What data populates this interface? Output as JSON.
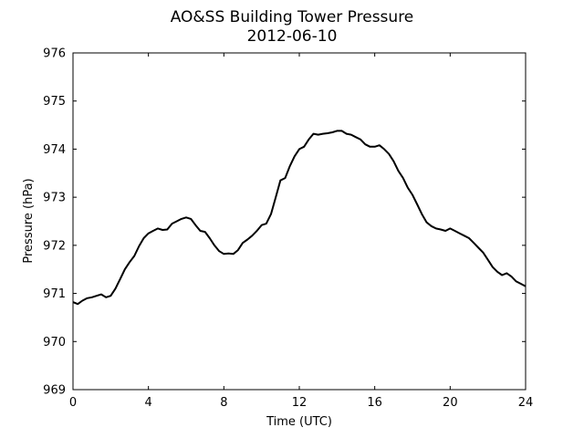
{
  "chart_data": {
    "type": "line",
    "title": "AO&SS Building Tower Pressure",
    "subtitle": "2012-06-10",
    "xlabel": "Time (UTC)",
    "ylabel": "Pressure (hPa)",
    "xlim": [
      0,
      24
    ],
    "ylim": [
      969,
      976
    ],
    "xticks": [
      0,
      4,
      8,
      12,
      16,
      20,
      24
    ],
    "yticks": [
      969,
      970,
      971,
      972,
      973,
      974,
      975,
      976
    ],
    "grid": false,
    "legend": "none",
    "series": [
      {
        "color": "#000000",
        "x": [
          0,
          0.25,
          0.5,
          0.75,
          1.0,
          1.25,
          1.5,
          1.75,
          2.0,
          2.25,
          2.5,
          2.75,
          3.0,
          3.25,
          3.5,
          3.75,
          4.0,
          4.25,
          4.5,
          4.75,
          5.0,
          5.25,
          5.5,
          5.75,
          6.0,
          6.25,
          6.5,
          6.75,
          7.0,
          7.25,
          7.5,
          7.75,
          8.0,
          8.25,
          8.5,
          8.75,
          9.0,
          9.25,
          9.5,
          9.75,
          10.0,
          10.25,
          10.5,
          10.75,
          11.0,
          11.25,
          11.5,
          11.75,
          12.0,
          12.25,
          12.5,
          12.75,
          13.0,
          13.25,
          13.5,
          13.75,
          14.0,
          14.25,
          14.5,
          14.75,
          15.0,
          15.25,
          15.5,
          15.75,
          16.0,
          16.25,
          16.5,
          16.75,
          17.0,
          17.25,
          17.5,
          17.75,
          18.0,
          18.25,
          18.5,
          18.75,
          19.0,
          19.25,
          19.5,
          19.75,
          20.0,
          20.25,
          20.5,
          20.75,
          21.0,
          21.25,
          21.5,
          21.75,
          22.0,
          22.25,
          22.5,
          22.75,
          23.0,
          23.25,
          23.5,
          23.75,
          24.0
        ],
        "y": [
          970.82,
          970.78,
          970.85,
          970.9,
          970.92,
          970.95,
          970.98,
          970.92,
          970.95,
          971.1,
          971.3,
          971.5,
          971.65,
          971.78,
          971.98,
          972.15,
          972.25,
          972.3,
          972.35,
          972.32,
          972.33,
          972.45,
          972.5,
          972.55,
          972.58,
          972.55,
          972.42,
          972.3,
          972.28,
          972.15,
          972.0,
          971.88,
          971.82,
          971.83,
          971.82,
          971.9,
          972.05,
          972.12,
          972.2,
          972.3,
          972.42,
          972.45,
          972.65,
          973.0,
          973.35,
          973.4,
          973.65,
          973.85,
          974.0,
          974.05,
          974.2,
          974.32,
          974.3,
          974.32,
          974.33,
          974.35,
          974.38,
          974.38,
          974.32,
          974.3,
          974.25,
          974.2,
          974.1,
          974.05,
          974.05,
          974.08,
          974.0,
          973.9,
          973.75,
          973.55,
          973.4,
          973.2,
          973.05,
          972.85,
          972.65,
          972.48,
          972.4,
          972.35,
          972.33,
          972.3,
          972.35,
          972.3,
          972.25,
          972.2,
          972.15,
          972.05,
          971.95,
          971.85,
          971.7,
          971.55,
          971.45,
          971.38,
          971.42,
          971.35,
          971.25,
          971.2,
          971.15
        ]
      }
    ]
  }
}
